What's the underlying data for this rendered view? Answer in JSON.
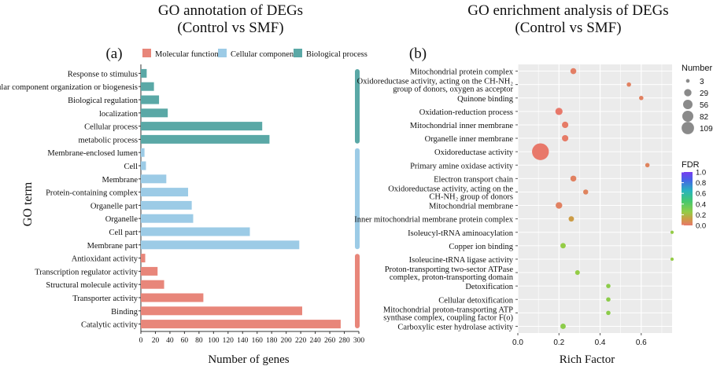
{
  "chart_data": [
    {
      "type": "bar",
      "orientation": "horizontal",
      "title_line1": "GO annotation of DEGs",
      "title_line2": "(Control vs SMF)",
      "panel_label": "(a)",
      "xlabel": "Number of genes",
      "ylabel": "GO term",
      "xlim": [
        0,
        300
      ],
      "xticks": [
        0,
        20,
        40,
        60,
        80,
        100,
        120,
        140,
        160,
        180,
        200,
        220,
        240,
        260,
        280,
        300
      ],
      "legend": [
        {
          "name": "Molecular function",
          "color": "#e8867a"
        },
        {
          "name": "Cellular component",
          "color": "#9ccbe6"
        },
        {
          "name": "Biological process",
          "color": "#5aa8a6"
        }
      ],
      "categories": [
        {
          "label": "Response to stimulus",
          "value": 8,
          "group": "Biological process"
        },
        {
          "label": "Cellular component organization or biogenesis",
          "value": 18,
          "group": "Biological process"
        },
        {
          "label": "Biological regulation",
          "value": 25,
          "group": "Biological process"
        },
        {
          "label": "localization",
          "value": 37,
          "group": "Biological process"
        },
        {
          "label": "Cellular process",
          "value": 167,
          "group": "Biological process"
        },
        {
          "label": "metabolic process",
          "value": 177,
          "group": "Biological process"
        },
        {
          "label": "Membrane-enclosed lumen",
          "value": 5,
          "group": "Cellular component"
        },
        {
          "label": "Cell",
          "value": 7,
          "group": "Cellular component"
        },
        {
          "label": "Membrane",
          "value": 35,
          "group": "Cellular component"
        },
        {
          "label": "Protein-containing complex",
          "value": 65,
          "group": "Cellular component"
        },
        {
          "label": "Organelle part",
          "value": 70,
          "group": "Cellular component"
        },
        {
          "label": "Organelle",
          "value": 72,
          "group": "Cellular component"
        },
        {
          "label": "Cell part",
          "value": 150,
          "group": "Cellular component"
        },
        {
          "label": "Membrane part",
          "value": 218,
          "group": "Cellular component"
        },
        {
          "label": "Antioxidant activity",
          "value": 6,
          "group": "Molecular function"
        },
        {
          "label": "Transcription regulator activity",
          "value": 23,
          "group": "Molecular function"
        },
        {
          "label": "Structural molecule activity",
          "value": 32,
          "group": "Molecular function"
        },
        {
          "label": "Transporter activity",
          "value": 86,
          "group": "Molecular function"
        },
        {
          "label": "Binding",
          "value": 222,
          "group": "Molecular function"
        },
        {
          "label": "Catalytic activity",
          "value": 275,
          "group": "Molecular function"
        }
      ]
    },
    {
      "type": "scatter",
      "title_line1": "GO enrichment analysis of DEGs",
      "title_line2": "(Control vs SMF)",
      "panel_label": "(b)",
      "xlabel": "Rich Factor",
      "xlim": [
        0.0,
        0.75
      ],
      "xticks": [
        "0.0",
        "0.2",
        "0.4",
        "0.6"
      ],
      "size_legend_title": "Number",
      "size_legend": [
        3,
        29,
        56,
        82,
        109
      ],
      "color_legend_title": "FDR",
      "color_legend_ticks": [
        "1.0",
        "0.8",
        "0.6",
        "0.4",
        "0.2",
        "0.0"
      ],
      "points": [
        {
          "label": "Mitochondrial protein complex",
          "x": 0.27,
          "number": 8,
          "fdr": 0.02
        },
        {
          "label": "Oxidoreductase activity, acting on the CH-NH₂ group of donors, oxygen as acceptor",
          "x": 0.54,
          "number": 3,
          "fdr": 0.03
        },
        {
          "label": "Quinone binding",
          "x": 0.6,
          "number": 3,
          "fdr": 0.03
        },
        {
          "label": "Oxidation-reduction process",
          "x": 0.2,
          "number": 14,
          "fdr": 0.0
        },
        {
          "label": "Mitochondrial inner membrane",
          "x": 0.23,
          "number": 10,
          "fdr": 0.01
        },
        {
          "label": "Organelle inner membrane",
          "x": 0.23,
          "number": 10,
          "fdr": 0.01
        },
        {
          "label": "Oxidoreductase activity",
          "x": 0.11,
          "number": 109,
          "fdr": 0.0
        },
        {
          "label": "Primary amine oxidase activity",
          "x": 0.63,
          "number": 3,
          "fdr": 0.04
        },
        {
          "label": "Electron transport chain",
          "x": 0.27,
          "number": 8,
          "fdr": 0.03
        },
        {
          "label": "Oxidoreductase activity, acting on the CH-NH₂ group of donors",
          "x": 0.33,
          "number": 5,
          "fdr": 0.04
        },
        {
          "label": "Mitochondrial membrane",
          "x": 0.2,
          "number": 11,
          "fdr": 0.03
        },
        {
          "label": "Inner mitochondrial membrane protein complex",
          "x": 0.26,
          "number": 6,
          "fdr": 0.12
        },
        {
          "label": "Isoleucyl-tRNA aminoacylation",
          "x": 0.75,
          "number": 1,
          "fdr": 0.25
        },
        {
          "label": "Copper ion binding",
          "x": 0.22,
          "number": 6,
          "fdr": 0.25
        },
        {
          "label": "Isoleucine-tRNA ligase activity",
          "x": 0.75,
          "number": 1,
          "fdr": 0.25
        },
        {
          "label": "Proton-transporting two-sector ATPase complex, proton-transporting domain",
          "x": 0.29,
          "number": 4,
          "fdr": 0.25
        },
        {
          "label": "Detoxification",
          "x": 0.44,
          "number": 3,
          "fdr": 0.27
        },
        {
          "label": "Cellular detoxification",
          "x": 0.44,
          "number": 3,
          "fdr": 0.27
        },
        {
          "label": "Mitochondrial proton-transporting ATP synthase complex, coupling factor F(o)",
          "x": 0.44,
          "number": 3,
          "fdr": 0.27
        },
        {
          "label": "Carboxylic ester hydrolase activity",
          "x": 0.22,
          "number": 6,
          "fdr": 0.27
        }
      ]
    }
  ]
}
